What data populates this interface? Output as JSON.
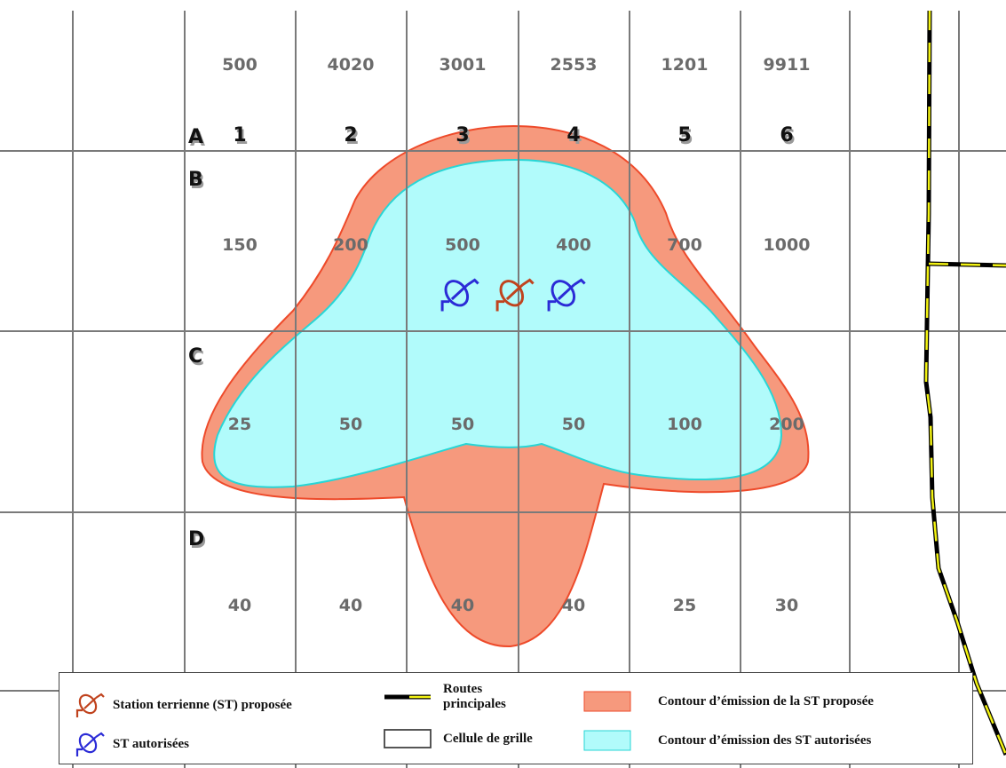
{
  "columns": {
    "numbers": [
      "1",
      "2",
      "3",
      "4",
      "5",
      "6"
    ],
    "top_values": [
      "500",
      "4020",
      "3001",
      "2553",
      "1201",
      "9911"
    ]
  },
  "rows": {
    "letters": [
      "A",
      "B",
      "C",
      "D"
    ],
    "values": {
      "B": [
        "150",
        "200",
        "500",
        "400",
        "700",
        "1000"
      ],
      "C": [
        "25",
        "50",
        "50",
        "50",
        "100",
        "200"
      ],
      "D": [
        "40",
        "40",
        "40",
        "40",
        "25",
        "30"
      ]
    }
  },
  "stations": [
    {
      "type": "authorized",
      "icon": "satellite-dish-icon",
      "color": "#2b2bd6"
    },
    {
      "type": "proposed",
      "icon": "satellite-dish-icon",
      "color": "#c0431e"
    },
    {
      "type": "authorized",
      "icon": "satellite-dish-icon",
      "color": "#2b2bd6"
    }
  ],
  "colors": {
    "proposed_contour_fill": "#f6997d",
    "proposed_contour_stroke": "#ee4a2a",
    "authorized_contour_fill": "#b1fbfb",
    "authorized_contour_stroke": "#27d6d6",
    "grid_line": "#7a7a7a",
    "road_dark": "#000000",
    "road_light": "#f3f312"
  },
  "legend": {
    "proposed_station": "Station terrienne (ST) proposée",
    "authorized_stations": "ST autorisées",
    "roads_line1": "Routes",
    "roads_line2": "principales",
    "grid_cell": "Cellule de grille",
    "proposed_contour": "Contour d’émission de la ST proposée",
    "authorized_contour": "Contour d’émission des ST autorisées"
  }
}
